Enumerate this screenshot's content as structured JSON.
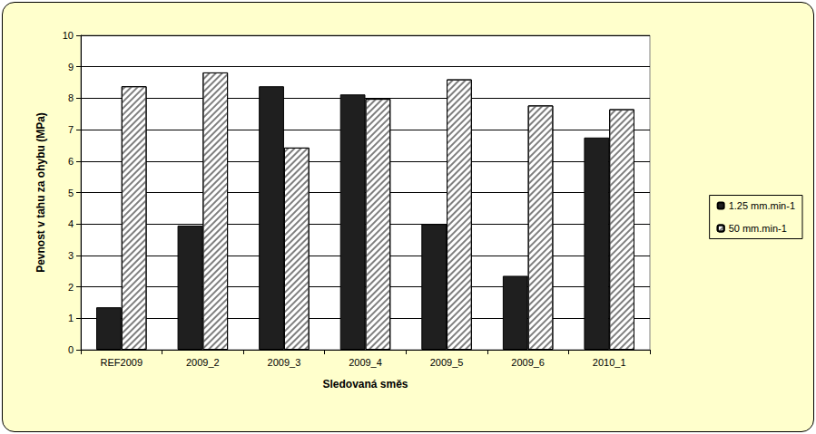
{
  "chart_data": {
    "type": "bar",
    "categories": [
      "REF2009",
      "2009_2",
      "2009_3",
      "2009_4",
      "2009_5",
      "2009_6",
      "2010_1"
    ],
    "series": [
      {
        "name": "1.25 mm.min-1",
        "color": "#1f1f1f",
        "values": [
          1.35,
          3.95,
          8.38,
          8.12,
          4.0,
          2.35,
          6.75
        ]
      },
      {
        "name": "50 mm.min-1",
        "color": "#ffffff",
        "values": [
          8.38,
          8.82,
          6.43,
          7.98,
          8.6,
          7.77,
          7.65
        ]
      }
    ],
    "x_label": "Sledovaná směs",
    "y_label": "Pevnost v tahu za ohybu (MPa)",
    "ylim": [
      0,
      10
    ],
    "yticks": [
      0,
      1,
      2,
      3,
      4,
      5,
      6,
      7,
      8,
      9,
      10
    ],
    "grid": true,
    "legend": "right"
  }
}
